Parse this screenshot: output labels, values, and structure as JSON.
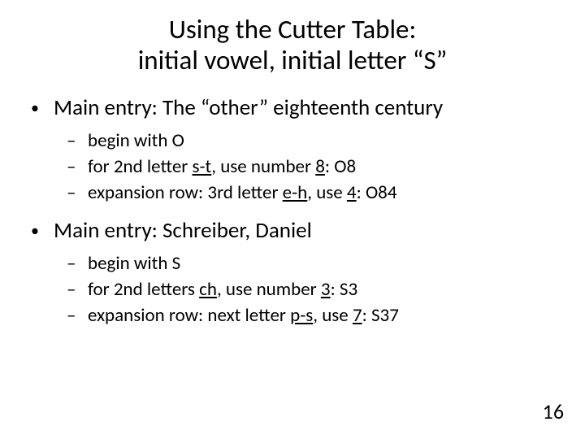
{
  "title_line1": "Using the Cutter Table:",
  "title_line2": "initial vowel, initial letter “S”",
  "entry1": {
    "heading": "Main entry: The “other” eighteenth century",
    "sub1": "begin with  O",
    "sub2_pre": "for 2nd letter ",
    "sub2_ul1": "s-t",
    "sub2_mid": ", use number ",
    "sub2_ul2": "8",
    "sub2_post": ":   O8",
    "sub3_pre": "expansion row: 3rd letter ",
    "sub3_ul1": "e-h",
    "sub3_mid": ", use ",
    "sub3_ul2": "4",
    "sub3_post": ":   O84"
  },
  "entry2": {
    "heading": "Main entry: Schreiber, Daniel",
    "sub1": "begin with  S",
    "sub2_pre": "for 2nd letters ",
    "sub2_ul1": "ch",
    "sub2_mid": ", use number ",
    "sub2_ul2": "3",
    "sub2_post": ":   S3",
    "sub3_pre": "expansion row: next letter ",
    "sub3_ul1": "p-s",
    "sub3_mid": ", use ",
    "sub3_ul2": "7",
    "sub3_post": ":   S37"
  },
  "page_number": "16",
  "colors": {
    "background": "#000000",
    "slide_bg": "#ffffff",
    "text": "#000000"
  },
  "typography": {
    "title_fontsize": 33,
    "level1_fontsize": 27,
    "level2_fontsize": 23,
    "pagenum_fontsize": 26,
    "font_family": "Calibri"
  }
}
